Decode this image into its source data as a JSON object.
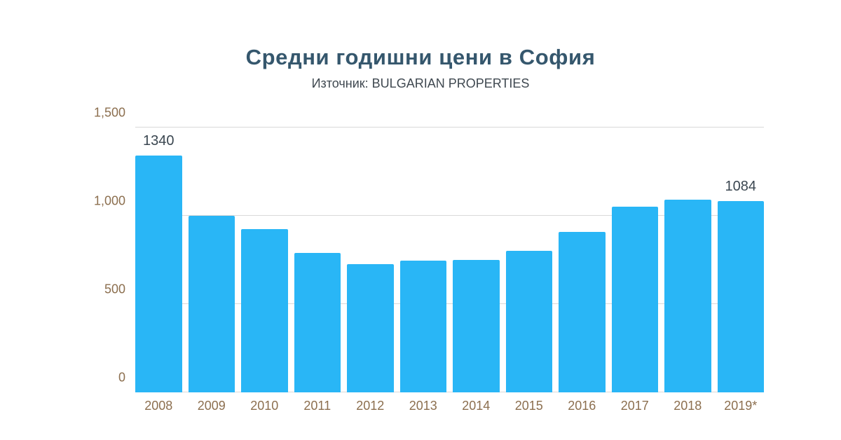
{
  "chart_data": {
    "type": "bar",
    "title": "Средни годишни цени в София",
    "subtitle": "Източник: BULGARIAN PROPERTIES",
    "categories": [
      "2008",
      "2009",
      "2010",
      "2011",
      "2012",
      "2013",
      "2014",
      "2015",
      "2016",
      "2017",
      "2018",
      "2019*"
    ],
    "values": [
      1340,
      1000,
      925,
      790,
      725,
      745,
      750,
      800,
      910,
      1050,
      1090,
      1084
    ],
    "data_labels": [
      "1340",
      "",
      "",
      "",
      "",
      "",
      "",
      "",
      "",
      "",
      "",
      "1084"
    ],
    "xlabel": "",
    "ylabel": "",
    "ylim": [
      0,
      1500
    ],
    "yticks": [
      0,
      500,
      1000,
      1500
    ],
    "ytick_labels": [
      "0",
      "500",
      "1,000",
      "1,500"
    ],
    "grid": "horizontal",
    "legend": "none",
    "colors": {
      "bar": "#29b6f6",
      "title": "#35576d",
      "subtitle": "#3f4850",
      "axis_label": "#8c6f4f",
      "data_label": "#3a4650",
      "gridline": "#d9d9d9"
    }
  }
}
